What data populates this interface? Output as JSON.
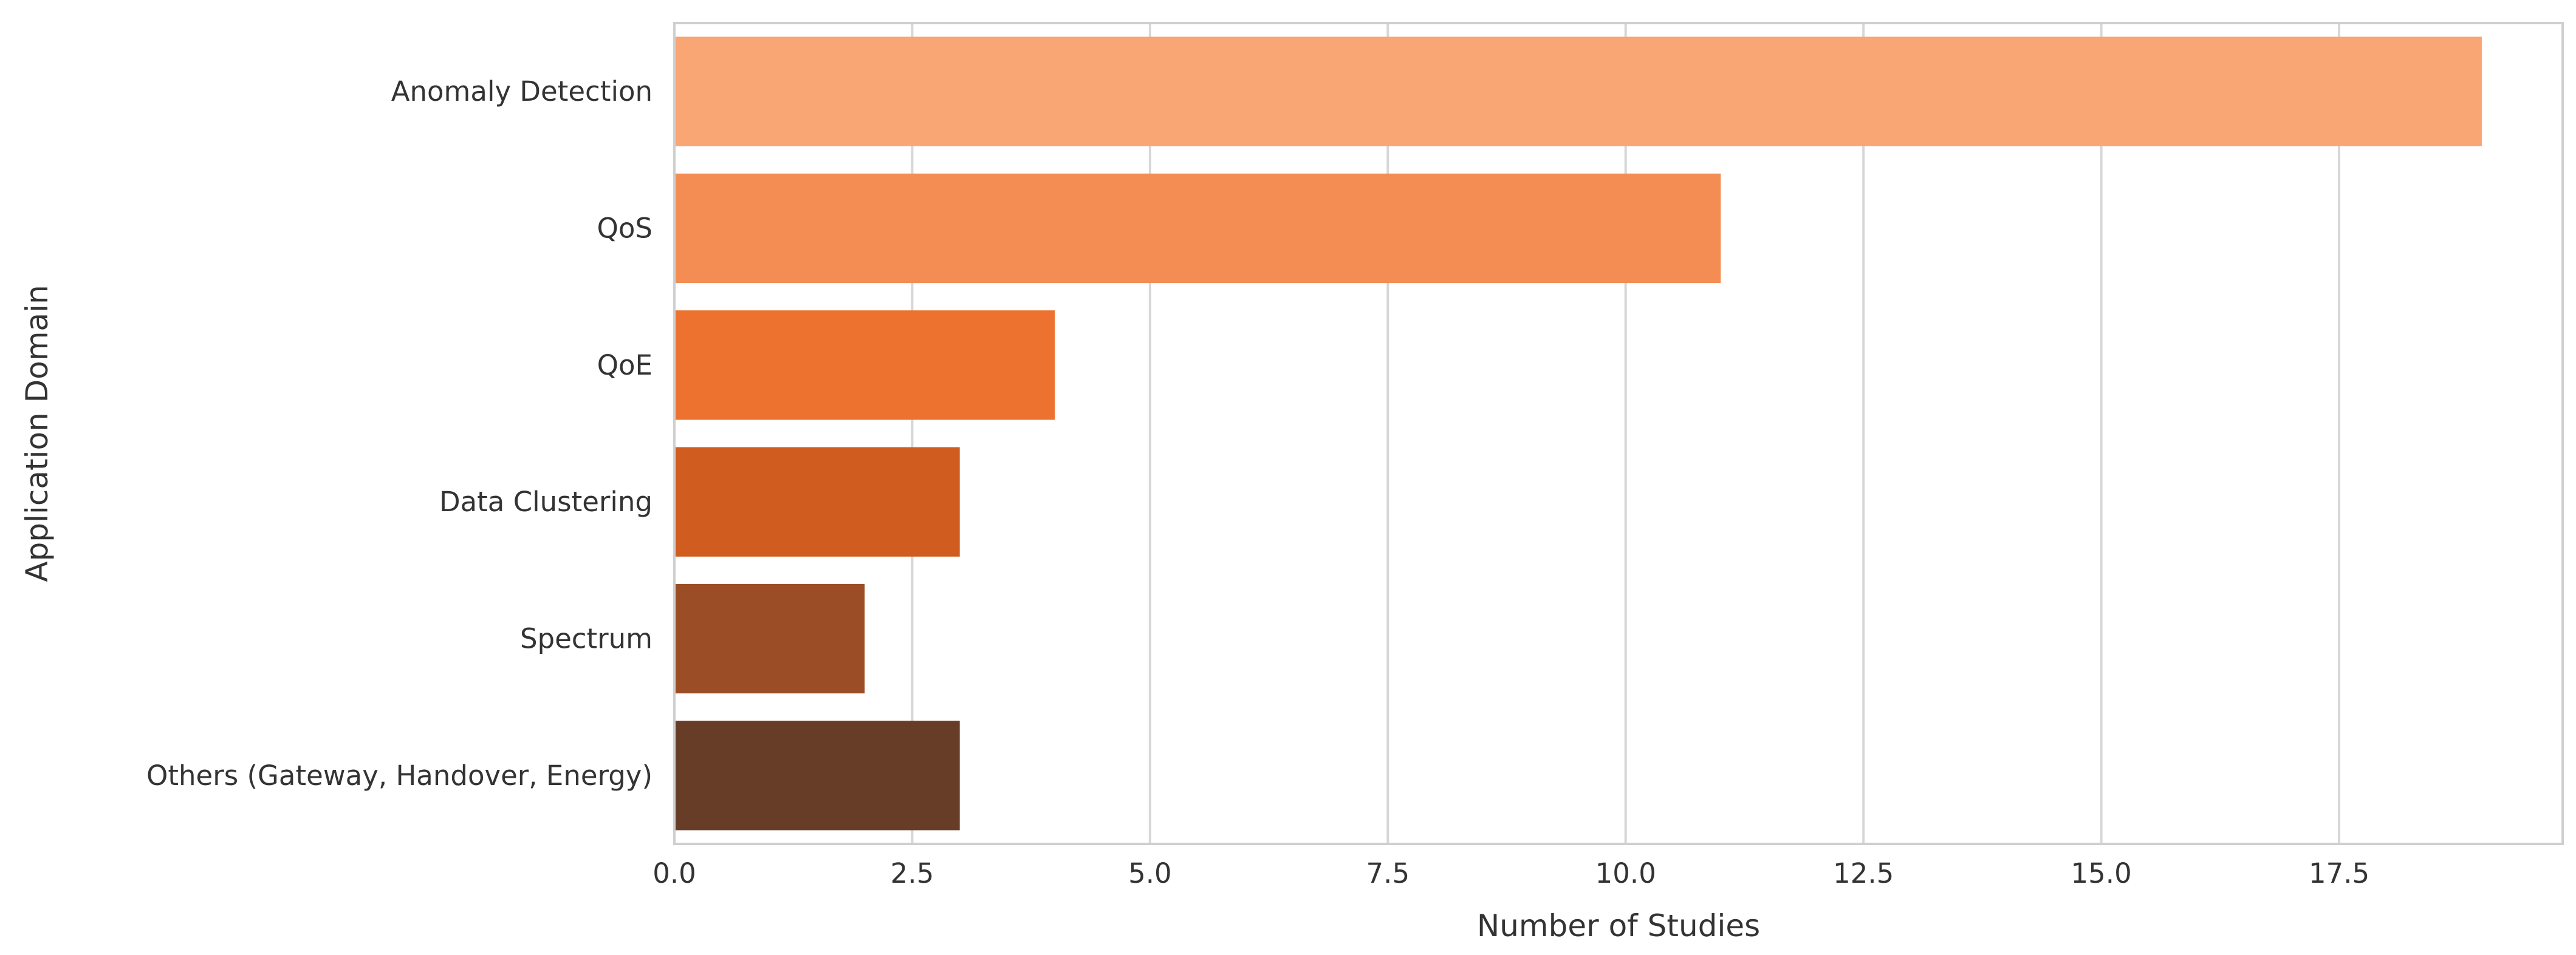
{
  "chart_data": {
    "type": "bar",
    "orientation": "horizontal",
    "title": "",
    "xlabel": "Number of Studies",
    "ylabel": "Application Domain",
    "categories": [
      "Anomaly Detection",
      "QoS",
      "QoE",
      "Data Clustering",
      "Spectrum",
      "Others (Gateway, Handover, Energy)"
    ],
    "values": [
      19,
      11,
      4,
      3,
      2,
      3
    ],
    "colors": [
      "#f9a574",
      "#f38d54",
      "#ed7230",
      "#d05c20",
      "#9b4d26",
      "#683d27"
    ],
    "xlim": [
      0,
      19.85
    ],
    "xticks": [
      0.0,
      2.5,
      5.0,
      7.5,
      10.0,
      12.5,
      15.0,
      17.5
    ],
    "xtick_labels": [
      "0.0",
      "2.5",
      "5.0",
      "7.5",
      "10.0",
      "12.5",
      "15.0",
      "17.5"
    ],
    "grid": {
      "x": true,
      "y": false,
      "color": "#d7d7d7"
    },
    "legend": "none"
  }
}
